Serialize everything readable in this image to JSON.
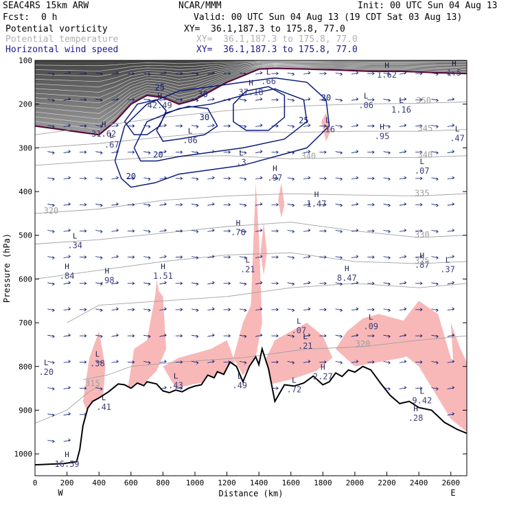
{
  "header": {
    "model": "SEAC4RS 15km ARW",
    "org": "NCAR/MMM",
    "init": "Init: 00 UTC Sun 04 Aug 13",
    "fcst_label": "Fcst:",
    "fcst_value": "0 h",
    "valid": "Valid: 00 UTC Sun 04 Aug 13 (19 CDT Sat 03 Aug 13)",
    "field1": "Potential vorticity",
    "field1_xy": "XY=  36.1,187.3 to 175.8, 77.0",
    "field2": "Potential temperature",
    "field2_xy": "XY=  36.1,187.3 to 175.8, 77.0",
    "field3": "Horizontal wind speed",
    "field3_xy": "XY=  36.1,187.3 to 175.8, 77.0"
  },
  "colors": {
    "pv": "#5a0a3c",
    "theta": "#a0a0a0",
    "wind": "#0a1a7a",
    "shade": "#f8b8b8",
    "field2_text": "#b0b0b0",
    "field3_text": "#1a1a8c"
  },
  "chart_data": {
    "type": "cross-section",
    "xlabel": "Distance (km)",
    "ylabel": "Pressure (hPa)",
    "xlim": [
      0,
      2700
    ],
    "ylim": [
      1050,
      100
    ],
    "x_ticks": [
      0,
      200,
      400,
      600,
      800,
      1000,
      1200,
      1400,
      1600,
      1800,
      2000,
      2200,
      2400,
      2600
    ],
    "y_ticks": [
      100,
      200,
      300,
      400,
      500,
      600,
      700,
      800,
      900,
      1000
    ],
    "left_end_label": "W",
    "right_end_label": "E",
    "terrain": [
      [
        0,
        1025
      ],
      [
        180,
        1022
      ],
      [
        260,
        1018
      ],
      [
        280,
        990
      ],
      [
        300,
        935
      ],
      [
        330,
        895
      ],
      [
        360,
        880
      ],
      [
        400,
        872
      ],
      [
        460,
        858
      ],
      [
        520,
        840
      ],
      [
        560,
        842
      ],
      [
        600,
        850
      ],
      [
        640,
        838
      ],
      [
        680,
        844
      ],
      [
        700,
        835
      ],
      [
        760,
        840
      ],
      [
        800,
        856
      ],
      [
        840,
        860
      ],
      [
        880,
        854
      ],
      [
        920,
        858
      ],
      [
        960,
        850
      ],
      [
        1000,
        845
      ],
      [
        1040,
        842
      ],
      [
        1080,
        820
      ],
      [
        1120,
        826
      ],
      [
        1140,
        812
      ],
      [
        1180,
        818
      ],
      [
        1220,
        790
      ],
      [
        1260,
        800
      ],
      [
        1300,
        835
      ],
      [
        1340,
        800
      ],
      [
        1380,
        778
      ],
      [
        1400,
        796
      ],
      [
        1420,
        760
      ],
      [
        1460,
        805
      ],
      [
        1500,
        880
      ],
      [
        1560,
        842
      ],
      [
        1620,
        845
      ],
      [
        1680,
        838
      ],
      [
        1740,
        822
      ],
      [
        1800,
        842
      ],
      [
        1840,
        835
      ],
      [
        1880,
        815
      ],
      [
        1920,
        823
      ],
      [
        1960,
        808
      ],
      [
        2000,
        813
      ],
      [
        2050,
        800
      ],
      [
        2100,
        808
      ],
      [
        2160,
        838
      ],
      [
        2220,
        866
      ],
      [
        2280,
        885
      ],
      [
        2340,
        880
      ],
      [
        2400,
        894
      ],
      [
        2480,
        900
      ],
      [
        2560,
        928
      ],
      [
        2640,
        944
      ],
      [
        2700,
        953
      ]
    ],
    "wind_speed_contours": [
      {
        "label": "20",
        "x": 600,
        "p": 372
      },
      {
        "label": "25",
        "x": 780,
        "p": 168
      },
      {
        "label": "30",
        "x": 1060,
        "p": 237
      },
      {
        "label": "20",
        "x": 770,
        "p": 322
      },
      {
        "label": "30",
        "x": 1050,
        "p": 184
      },
      {
        "label": "25",
        "x": 1680,
        "p": 244
      },
      {
        "label": "20",
        "x": 1820,
        "p": 192
      }
    ],
    "theta_contours": [
      {
        "label": "350",
        "x": 2430,
        "p": 198
      },
      {
        "label": "345",
        "x": 2440,
        "p": 262
      },
      {
        "label": "340",
        "x": 2440,
        "p": 322
      },
      {
        "label": "340",
        "x": 1710,
        "p": 325
      },
      {
        "label": "335",
        "x": 2420,
        "p": 410
      },
      {
        "label": "330",
        "x": 2420,
        "p": 505
      },
      {
        "label": "325",
        "x": 2420,
        "p": 565
      },
      {
        "label": "320",
        "x": 100,
        "p": 450
      },
      {
        "label": "320",
        "x": 2050,
        "p": 755
      },
      {
        "label": "315",
        "x": 360,
        "p": 845
      }
    ],
    "extrema": [
      {
        "type": "L",
        "value": ".34",
        "x": 250,
        "p": 520
      },
      {
        "type": "H",
        "value": ".84",
        "x": 200,
        "p": 590
      },
      {
        "type": "H",
        "value": ".98",
        "x": 450,
        "p": 600
      },
      {
        "type": "H",
        "value": "1.51",
        "x": 800,
        "p": 590
      },
      {
        "type": "H",
        "value": ".76",
        "x": 1270,
        "p": 490
      },
      {
        "type": "L",
        "value": ".21",
        "x": 1330,
        "p": 575
      },
      {
        "type": "H",
        "value": "1.47",
        "x": 1760,
        "p": 425
      },
      {
        "type": "H",
        "value": ".97",
        "x": 1500,
        "p": 365
      },
      {
        "type": "H",
        "value": "8.47",
        "x": 1950,
        "p": 595
      },
      {
        "type": "H",
        "value": ".87",
        "x": 2420,
        "p": 565
      },
      {
        "type": "L",
        "value": ".37",
        "x": 2580,
        "p": 575
      },
      {
        "type": "L",
        "value": ".07",
        "x": 2420,
        "p": 350
      },
      {
        "type": "L",
        "value": ".47",
        "x": 2640,
        "p": 275
      },
      {
        "type": "H",
        "value": ".95",
        "x": 2170,
        "p": 270
      },
      {
        "type": "L",
        "value": ".06",
        "x": 2070,
        "p": 200
      },
      {
        "type": "L",
        "value": "1.16",
        "x": 2290,
        "p": 210
      },
      {
        "type": "H",
        "value": "1.62",
        "x": 2200,
        "p": 130
      },
      {
        "type": "H",
        "value": "1.5",
        "x": 2620,
        "p": 125
      },
      {
        "type": "L",
        "value": ".16",
        "x": 1830,
        "p": 255
      },
      {
        "type": "L",
        "value": ".66",
        "x": 1460,
        "p": 145
      },
      {
        "type": "H",
        "value": "37.18",
        "x": 1350,
        "p": 170
      },
      {
        "type": "H",
        "value": "42.49",
        "x": 780,
        "p": 200
      },
      {
        "type": "H",
        "value": "31.62",
        "x": 430,
        "p": 265
      },
      {
        "type": "L",
        "value": ".67",
        "x": 480,
        "p": 290
      },
      {
        "type": "L",
        "value": ".06",
        "x": 970,
        "p": 280
      },
      {
        "type": "L",
        "value": ".3",
        "x": 1290,
        "p": 330
      },
      {
        "type": "L",
        "value": ".38",
        "x": 390,
        "p": 790
      },
      {
        "type": "L",
        "value": ".20",
        "x": 70,
        "p": 810
      },
      {
        "type": "L",
        "value": ".41",
        "x": 430,
        "p": 890
      },
      {
        "type": "L",
        "value": ".43",
        "x": 880,
        "p": 840
      },
      {
        "type": "L",
        "value": ".49",
        "x": 1280,
        "p": 840
      },
      {
        "type": "L",
        "value": ".07",
        "x": 1650,
        "p": 715
      },
      {
        "type": "L",
        "value": ".21",
        "x": 1690,
        "p": 750
      },
      {
        "type": "L",
        "value": ".09",
        "x": 2100,
        "p": 705
      },
      {
        "type": "H",
        "value": "2.27",
        "x": 1800,
        "p": 820
      },
      {
        "type": "L",
        "value": ".72",
        "x": 1620,
        "p": 850
      },
      {
        "type": "L",
        "value": "9.42",
        "x": 2420,
        "p": 875
      },
      {
        "type": "H",
        "value": ".28",
        "x": 2380,
        "p": 915
      },
      {
        "type": "H",
        "value": "16.59",
        "x": 200,
        "p": 1020
      }
    ]
  }
}
